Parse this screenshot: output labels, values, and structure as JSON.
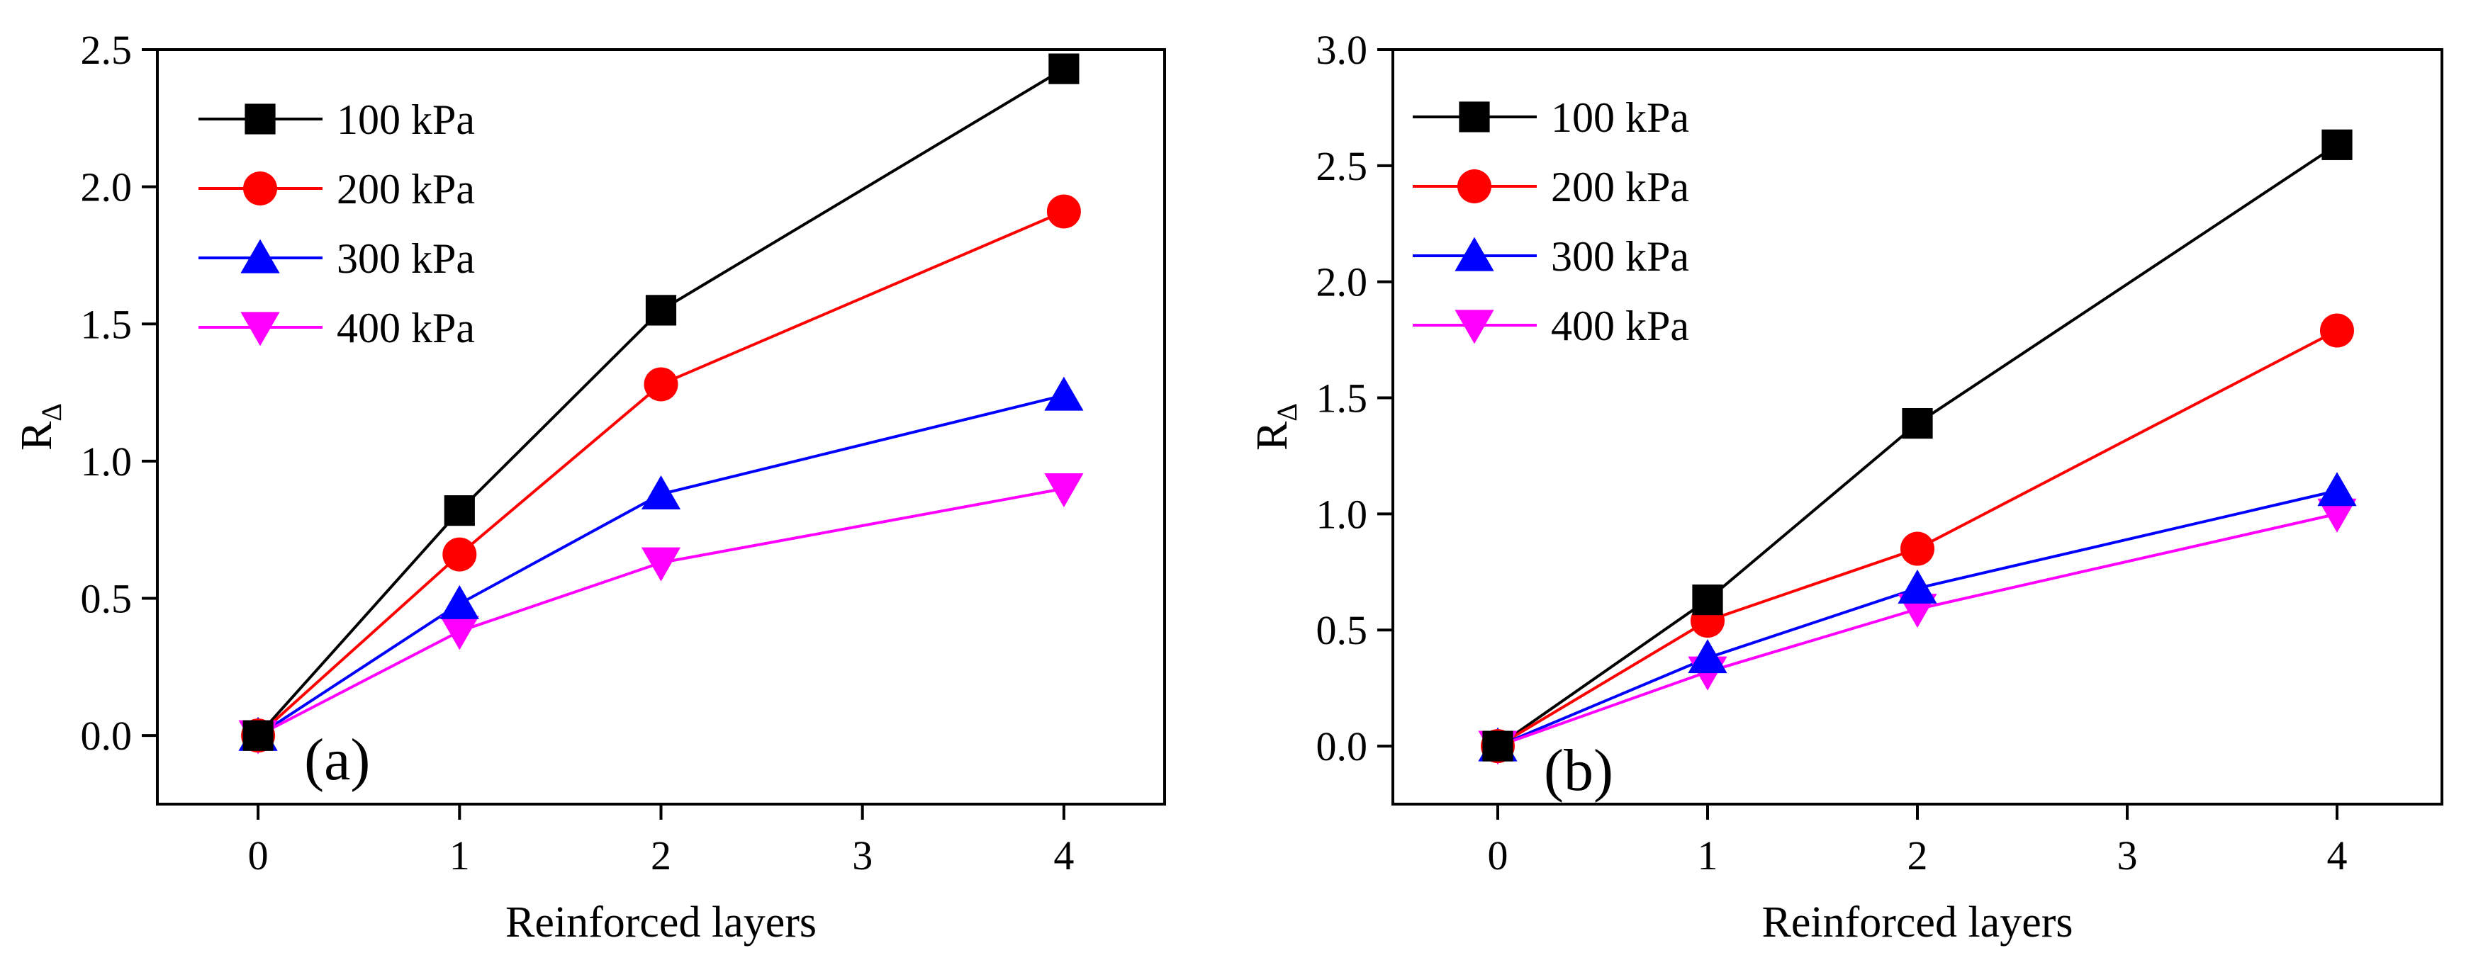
{
  "chart_data": [
    {
      "type": "line",
      "panel_label": "(a)",
      "xlabel": "Reinforced layers",
      "ylabel": "R",
      "ylabel_subscript": "Δ",
      "xlim": [
        -0.5,
        4.5
      ],
      "ylim": [
        -0.25,
        2.5
      ],
      "xticks": [
        0,
        1,
        2,
        3,
        4
      ],
      "xtick_labels": [
        "0",
        "1",
        "2",
        "3",
        "4"
      ],
      "yticks": [
        0.0,
        0.5,
        1.0,
        1.5,
        2.0,
        2.5
      ],
      "ytick_labels": [
        "0.0",
        "0.5",
        "1.0",
        "1.5",
        "2.0",
        "2.5"
      ],
      "grid": false,
      "legend_position": "top-left",
      "x": [
        0,
        1,
        2,
        4
      ],
      "series": [
        {
          "name": "100 kPa",
          "marker": "square",
          "color": "#000000",
          "values": [
            0.0,
            0.82,
            1.55,
            2.43
          ]
        },
        {
          "name": "200 kPa",
          "marker": "circle",
          "color": "#ff0000",
          "values": [
            0.0,
            0.66,
            1.28,
            1.91
          ]
        },
        {
          "name": "300 kPa",
          "marker": "triangle-up",
          "color": "#0000ff",
          "values": [
            0.0,
            0.48,
            0.88,
            1.24
          ]
        },
        {
          "name": "400 kPa",
          "marker": "triangle-down",
          "color": "#ff00ff",
          "values": [
            0.0,
            0.38,
            0.63,
            0.9
          ]
        }
      ]
    },
    {
      "type": "line",
      "panel_label": "(b)",
      "xlabel": "Reinforced layers",
      "ylabel": "R",
      "ylabel_subscript": "Δ",
      "xlim": [
        -0.5,
        4.5
      ],
      "ylim": [
        -0.25,
        3.0
      ],
      "xticks": [
        0,
        1,
        2,
        3,
        4
      ],
      "xtick_labels": [
        "0",
        "1",
        "2",
        "3",
        "4"
      ],
      "yticks": [
        0.0,
        0.5,
        1.0,
        1.5,
        2.0,
        2.5,
        3.0
      ],
      "ytick_labels": [
        "0.0",
        "0.5",
        "1.0",
        "1.5",
        "2.0",
        "2.5",
        "3.0"
      ],
      "grid": false,
      "legend_position": "top-left",
      "x": [
        0,
        1,
        2,
        4
      ],
      "series": [
        {
          "name": "100 kPa",
          "marker": "square",
          "color": "#000000",
          "values": [
            0.0,
            0.63,
            1.39,
            2.59
          ]
        },
        {
          "name": "200 kPa",
          "marker": "circle",
          "color": "#ff0000",
          "values": [
            0.0,
            0.54,
            0.85,
            1.79
          ]
        },
        {
          "name": "300 kPa",
          "marker": "triangle-up",
          "color": "#0000ff",
          "values": [
            0.0,
            0.38,
            0.68,
            1.1
          ]
        },
        {
          "name": "400 kPa",
          "marker": "triangle-down",
          "color": "#ff00ff",
          "values": [
            0.0,
            0.32,
            0.59,
            1.0
          ]
        }
      ]
    }
  ]
}
